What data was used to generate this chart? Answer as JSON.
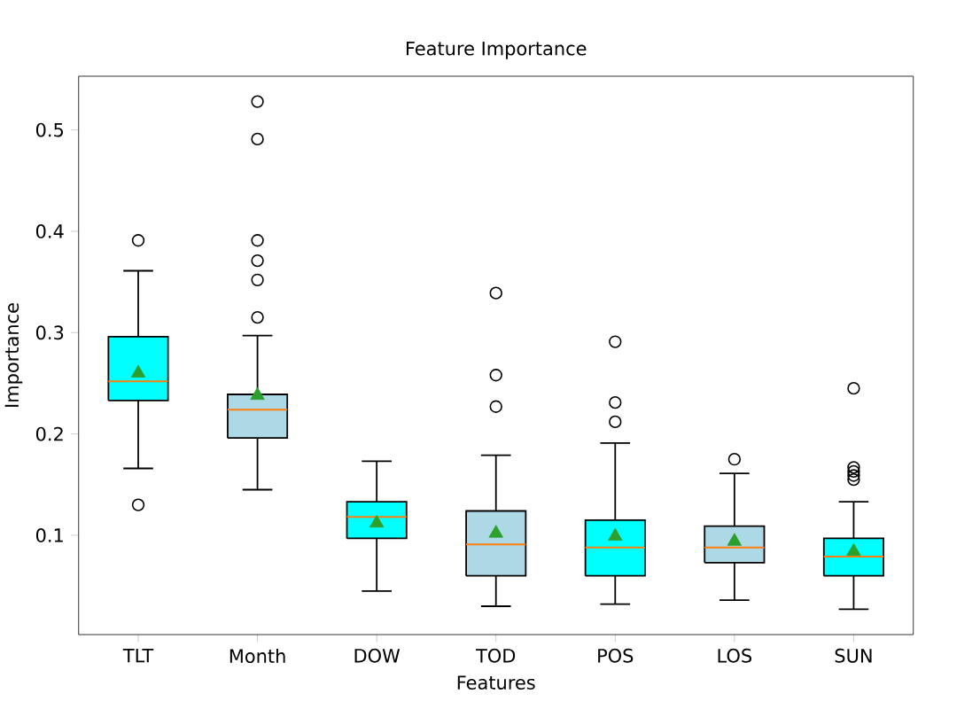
{
  "chart_data": {
    "type": "box",
    "title": "Feature Importance",
    "xlabel": "Features",
    "ylabel": "Importance",
    "categories": [
      "TLT",
      "Month",
      "DOW",
      "TOD",
      "POS",
      "LOS",
      "SUN"
    ],
    "colors": [
      "#00ffff",
      "#add8e6",
      "#00ffff",
      "#add8e6",
      "#00ffff",
      "#add8e6",
      "#00ffff"
    ],
    "boxes": [
      {
        "low": 0.166,
        "q1": 0.233,
        "median": 0.252,
        "q3": 0.296,
        "high": 0.361,
        "mean": 0.26,
        "outliers": [
          0.391,
          0.13
        ]
      },
      {
        "low": 0.145,
        "q1": 0.196,
        "median": 0.224,
        "q3": 0.239,
        "high": 0.297,
        "mean": 0.238,
        "outliers": [
          0.528,
          0.491,
          0.391,
          0.371,
          0.352,
          0.315
        ]
      },
      {
        "low": 0.045,
        "q1": 0.097,
        "median": 0.118,
        "q3": 0.133,
        "high": 0.173,
        "mean": 0.112
      },
      {
        "low": 0.03,
        "q1": 0.06,
        "median": 0.091,
        "q3": 0.124,
        "high": 0.179,
        "mean": 0.102,
        "outliers": [
          0.339,
          0.258,
          0.227
        ]
      },
      {
        "low": 0.032,
        "q1": 0.06,
        "median": 0.088,
        "q3": 0.115,
        "high": 0.191,
        "mean": 0.099,
        "outliers": [
          0.291,
          0.231,
          0.212
        ]
      },
      {
        "low": 0.036,
        "q1": 0.073,
        "median": 0.088,
        "q3": 0.109,
        "high": 0.161,
        "mean": 0.094,
        "outliers": [
          0.175
        ]
      },
      {
        "low": 0.027,
        "q1": 0.06,
        "median": 0.079,
        "q3": 0.097,
        "high": 0.133,
        "mean": 0.084,
        "outliers": [
          0.245,
          0.167,
          0.163,
          0.159,
          0.155
        ]
      }
    ],
    "ylim": [
      0.002,
      0.553
    ],
    "yticks": [
      0.1,
      0.2,
      0.3,
      0.4,
      0.5
    ]
  }
}
